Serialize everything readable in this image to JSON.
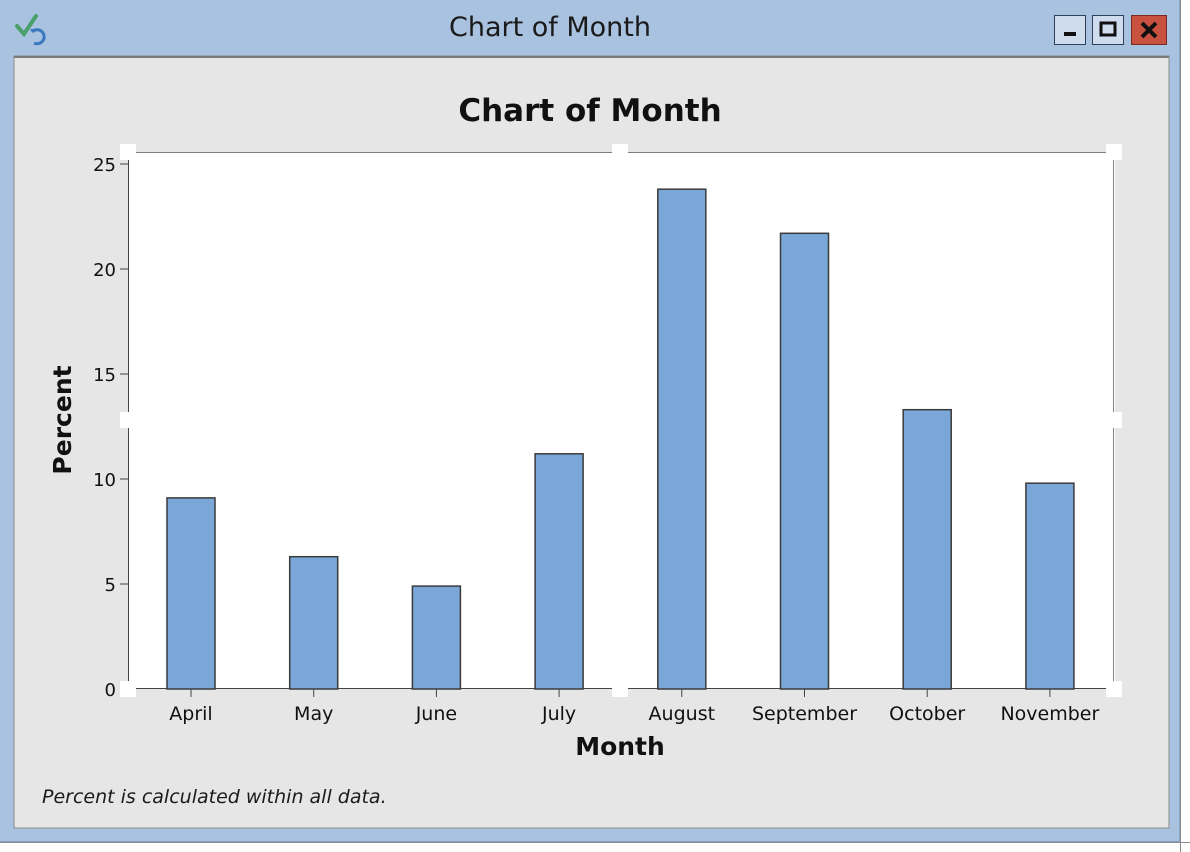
{
  "window": {
    "title": "Chart of Month"
  },
  "footnote": "Percent is calculated within all data.",
  "colors": {
    "bar_fill": "#7ba7d8",
    "bar_stroke": "#3a3a3a",
    "window_frame": "#a9c2df",
    "chart_bg": "#e6e6e6",
    "plot_bg": "#ffffff",
    "close_button": "#c9513f"
  },
  "icons": {
    "app": "checkmark-refresh-icon",
    "minimize": "minimize-icon",
    "maximize": "maximize-icon",
    "close": "close-icon"
  },
  "chart_data": {
    "type": "bar",
    "title": "Chart of Month",
    "xlabel": "Month",
    "ylabel": "Percent",
    "categories": [
      "April",
      "May",
      "June",
      "July",
      "August",
      "September",
      "October",
      "November"
    ],
    "values": [
      9.1,
      6.3,
      4.9,
      11.2,
      23.8,
      21.7,
      13.3,
      9.8
    ],
    "ylim": [
      0,
      25
    ],
    "yticks": [
      "0",
      "5",
      "10",
      "15",
      "20",
      "25"
    ],
    "grid": false,
    "legend": "none"
  }
}
